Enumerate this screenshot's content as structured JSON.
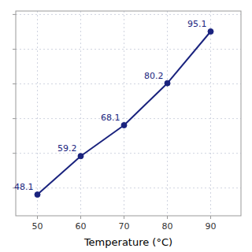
{
  "chart_data": {
    "type": "line",
    "x": [
      50,
      60,
      70,
      80,
      90
    ],
    "values": [
      48.1,
      59.2,
      68.1,
      80.2,
      95.1
    ],
    "color": "#1a237e",
    "marker": "circle",
    "data_labels": true,
    "xlabel": "Temperature (°C)",
    "xlim": [
      45,
      97
    ],
    "ylim": [
      42,
      101
    ],
    "xticks": [
      50,
      60,
      70,
      80,
      90
    ],
    "yticks": [
      50,
      60,
      70,
      80,
      90,
      100
    ],
    "tick_labels": "x",
    "grid": true
  }
}
